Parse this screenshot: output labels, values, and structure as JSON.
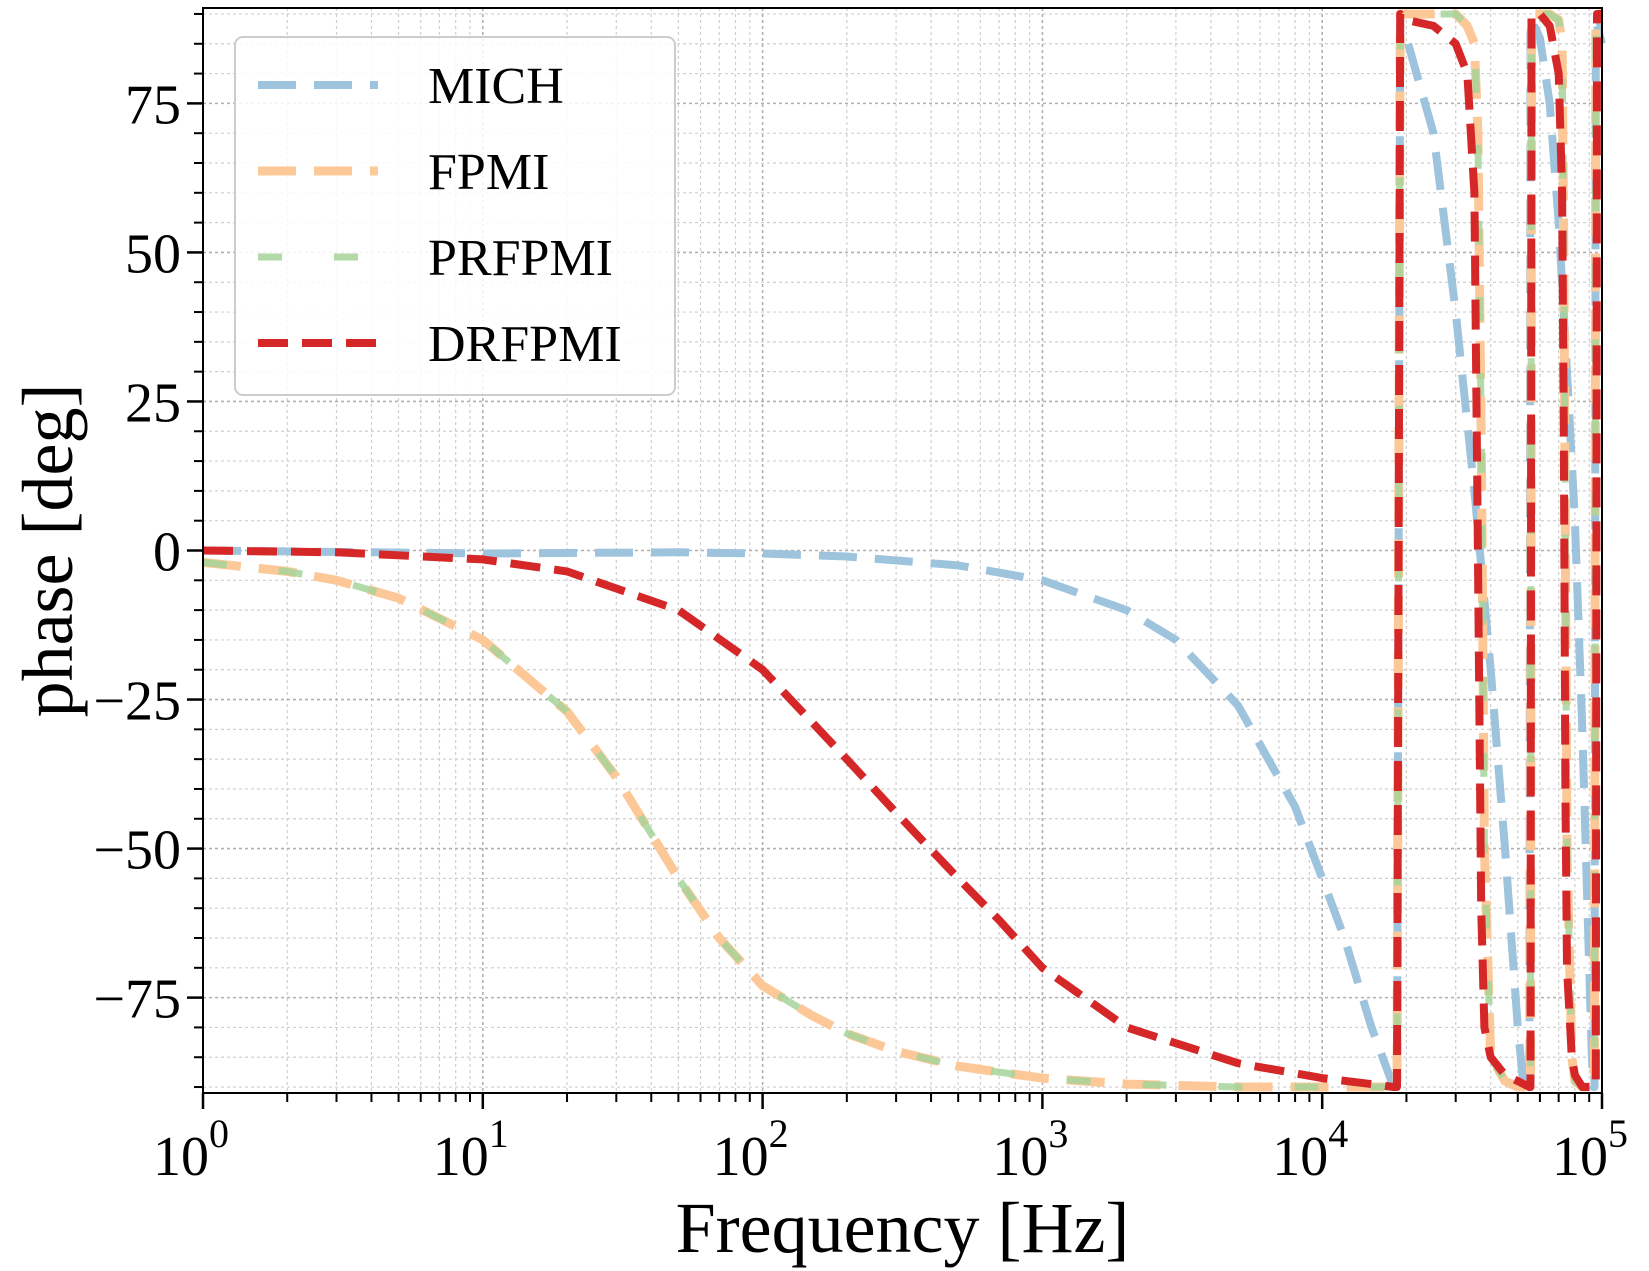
{
  "chart_data": {
    "type": "line",
    "xlabel": "Frequency [Hz]",
    "ylabel": "phase [deg]",
    "xscale": "log",
    "xlim": [
      1,
      100000
    ],
    "ylim": [
      -91,
      91
    ],
    "grid": true,
    "legend_position": "top-left",
    "x_ticks": [
      {
        "base": "10",
        "exp": "0",
        "value": 1
      },
      {
        "base": "10",
        "exp": "1",
        "value": 10
      },
      {
        "base": "10",
        "exp": "2",
        "value": 100
      },
      {
        "base": "10",
        "exp": "3",
        "value": 1000
      },
      {
        "base": "10",
        "exp": "4",
        "value": 10000
      },
      {
        "base": "10",
        "exp": "5",
        "value": 100000
      }
    ],
    "y_ticks": [
      {
        "label": "75",
        "value": 75
      },
      {
        "label": "50",
        "value": 50
      },
      {
        "label": "25",
        "value": 25
      },
      {
        "label": "0",
        "value": 0
      },
      {
        "label": "−25",
        "value": -25
      },
      {
        "label": "−50",
        "value": -50
      },
      {
        "label": "−75",
        "value": -75
      }
    ],
    "series": [
      {
        "name": "MICH",
        "color": "#9ec3dd",
        "dash": "long",
        "x": [
          1,
          10,
          50,
          100,
          200,
          500,
          1000,
          2000,
          3000,
          5000,
          8000,
          10000,
          12000,
          15000,
          18000,
          18500,
          19000,
          20000,
          25000,
          30000,
          35000,
          40000,
          45000,
          50000,
          52000,
          54000,
          55000,
          55500,
          56000,
          60000,
          65000,
          70000,
          75000,
          80000,
          85000,
          90000,
          92000,
          93000,
          94000,
          95000,
          96000,
          100000
        ],
        "values": [
          0,
          -0.5,
          -0.3,
          -0.5,
          -1,
          -2.5,
          -5,
          -10,
          -15,
          -26,
          -43,
          -55,
          -65,
          -80,
          -90,
          -90,
          88,
          86,
          70,
          40,
          10,
          -20,
          -50,
          -80,
          -88,
          -90,
          -90,
          89,
          89,
          86,
          75,
          55,
          30,
          5,
          -30,
          -70,
          -85,
          -90,
          -90,
          88,
          88,
          85
        ]
      },
      {
        "name": "FPMI",
        "color": "#fdc897",
        "dash": "long",
        "x": [
          1,
          2,
          3,
          5,
          10,
          20,
          30,
          50,
          70,
          100,
          150,
          200,
          300,
          500,
          700,
          1000,
          2000,
          5000,
          10000,
          18000,
          18500,
          19000,
          25000,
          30000,
          33000,
          35000,
          36000,
          37000,
          38000,
          40000,
          45000,
          50000,
          55000,
          55500,
          56000,
          58000,
          65000,
          70000,
          72000,
          73000,
          74000,
          75000,
          78000,
          80000,
          85000,
          90000,
          94000,
          95000,
          96000,
          100000
        ],
        "values": [
          -2,
          -3.5,
          -5,
          -8,
          -15,
          -27,
          -38,
          -55,
          -65,
          -73,
          -78,
          -81,
          -84,
          -86.5,
          -87.5,
          -88.5,
          -89.5,
          -90,
          -90,
          -90,
          -90,
          90,
          90,
          90,
          88,
          85,
          70,
          20,
          -50,
          -85,
          -89,
          -90,
          -90,
          -90,
          90,
          90,
          90,
          89,
          85,
          50,
          0,
          -50,
          -85,
          -89,
          -90,
          -90,
          -90,
          90,
          90,
          90
        ]
      },
      {
        "name": "PRFPMI",
        "color": "#a6d39a",
        "dash": "gapped",
        "x": [
          1,
          2,
          3,
          5,
          10,
          20,
          30,
          50,
          70,
          100,
          150,
          200,
          300,
          500,
          700,
          1000,
          2000,
          5000,
          10000,
          18000,
          18500,
          19000,
          25000,
          30000,
          33000,
          35000,
          36000,
          37000,
          38000,
          40000,
          45000,
          50000,
          55000,
          55500,
          56000,
          58000,
          65000,
          70000,
          72000,
          73000,
          74000,
          75000,
          78000,
          80000,
          85000,
          90000,
          94000,
          95000,
          96000,
          100000
        ],
        "values": [
          -2,
          -3.5,
          -5,
          -8,
          -15,
          -27,
          -38,
          -55,
          -65,
          -73,
          -78,
          -81,
          -84,
          -86.5,
          -87.5,
          -88.5,
          -89.5,
          -90,
          -90,
          -90,
          -90,
          90,
          90,
          90,
          88,
          85,
          70,
          20,
          -50,
          -85,
          -89,
          -90,
          -90,
          -90,
          90,
          90,
          90,
          89,
          85,
          50,
          0,
          -50,
          -85,
          -89,
          -90,
          -90,
          -90,
          90,
          90,
          90
        ]
      },
      {
        "name": "DRFPMI",
        "color": "#d62728",
        "dash": "normal",
        "x": [
          1,
          3,
          10,
          20,
          50,
          100,
          200,
          300,
          500,
          700,
          1000,
          2000,
          5000,
          10000,
          15000,
          18000,
          18500,
          19000,
          20000,
          25000,
          30000,
          33000,
          35000,
          36000,
          37000,
          38000,
          40000,
          45000,
          50000,
          55000,
          55500,
          56000,
          60000,
          65000,
          70000,
          72000,
          73000,
          74000,
          75000,
          78000,
          80000,
          85000,
          90000,
          94000,
          95000,
          96000,
          100000
        ],
        "values": [
          0,
          -0.3,
          -1.5,
          -3.5,
          -10,
          -20,
          -35,
          -44,
          -55,
          -62,
          -70,
          -80,
          -86,
          -88.5,
          -89.5,
          -90,
          -90,
          90,
          89,
          88,
          85,
          80,
          60,
          0,
          -60,
          -80,
          -85,
          -88,
          -89,
          -90,
          -90,
          90,
          90,
          88,
          80,
          60,
          20,
          -40,
          -70,
          -85,
          -88,
          -90,
          -90,
          -90,
          -90,
          90,
          90
        ]
      }
    ]
  }
}
